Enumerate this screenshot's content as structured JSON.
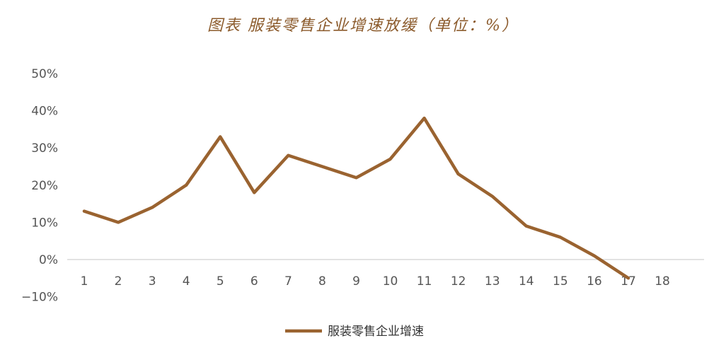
{
  "chart_data": {
    "type": "line",
    "title": "图表 服装零售企业增速放缓（单位：%）",
    "xlabel": "",
    "ylabel": "",
    "categories": [
      "1",
      "2",
      "3",
      "4",
      "5",
      "6",
      "7",
      "8",
      "9",
      "10",
      "11",
      "12",
      "13",
      "14",
      "15",
      "16",
      "17",
      "18"
    ],
    "series": [
      {
        "name": "服装零售企业增速",
        "values": [
          13,
          10,
          14,
          20,
          33,
          18,
          28,
          25,
          22,
          27,
          38,
          23,
          17,
          9,
          6,
          1,
          -5,
          null
        ]
      }
    ],
    "yticks": [
      "−10%",
      "0%",
      "10%",
      "20%",
      "30%",
      "40%",
      "50%"
    ],
    "ylim": [
      -10,
      50
    ],
    "grid": false,
    "legend": "bottom",
    "colors": {
      "line": "#9a6330",
      "title": "#8b5a2b",
      "axis": "#d9d9d9"
    }
  }
}
